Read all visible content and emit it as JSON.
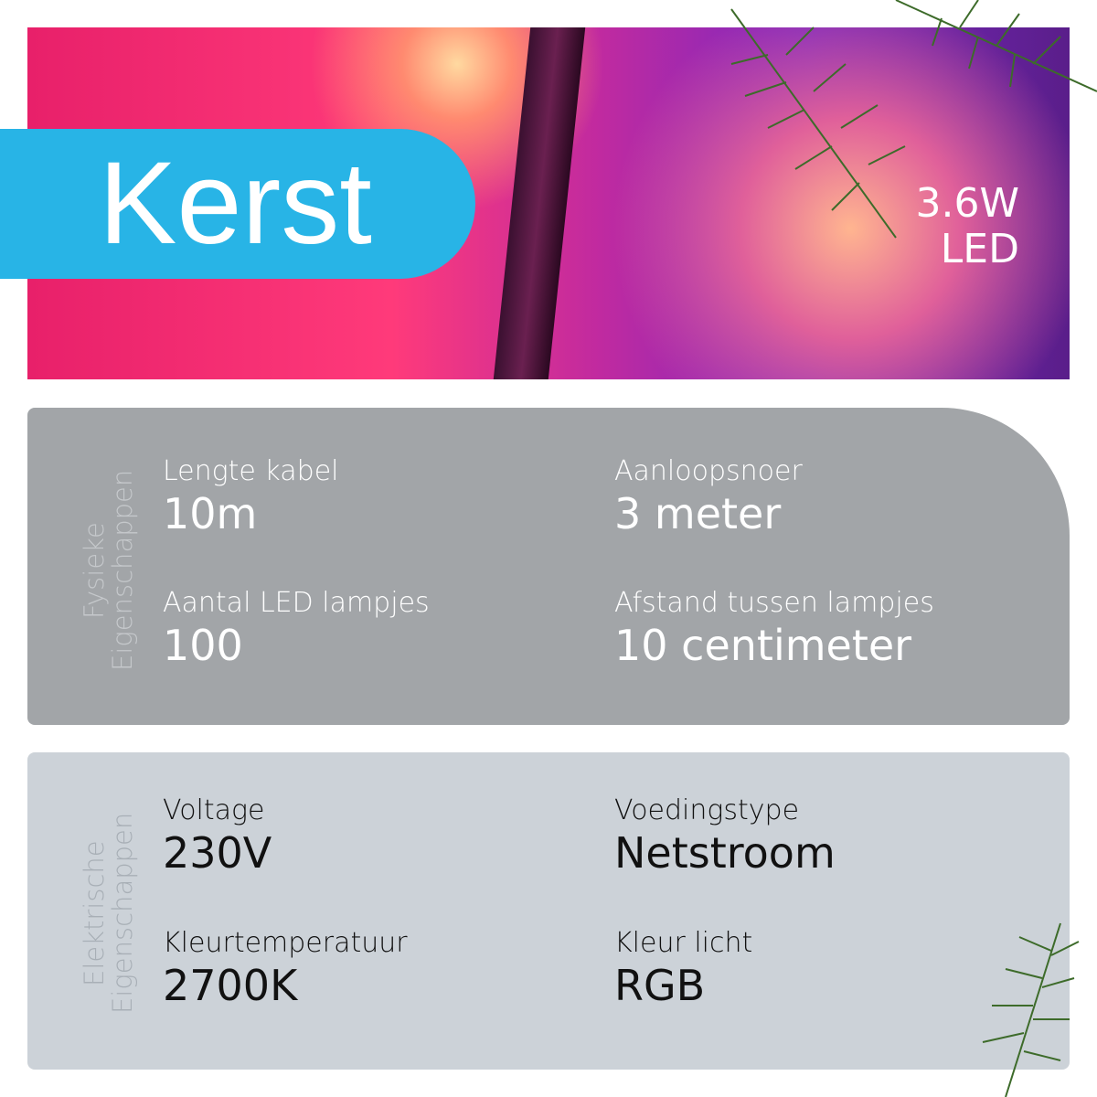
{
  "hero": {
    "title": "Kerst",
    "power_line1": "3.6W",
    "power_line2": "LED"
  },
  "physical": {
    "heading": "Fysieke Eigenschappen",
    "items": [
      {
        "label": "Lengte kabel",
        "value": "10m"
      },
      {
        "label": "Aanloopsnoer",
        "value": "3 meter"
      },
      {
        "label": "Aantal LED lampjes",
        "value": "100"
      },
      {
        "label": "Afstand tussen lampjes",
        "value": "10 centimeter"
      }
    ]
  },
  "electrical": {
    "heading": "Elektrische Eigenschappen",
    "items": [
      {
        "label": "Voltage",
        "value": "230V"
      },
      {
        "label": "Voedingstype",
        "value": "Netstroom"
      },
      {
        "label": "Kleurtemperatuur",
        "value": "2700K"
      },
      {
        "label": "Kleur licht",
        "value": "RGB"
      }
    ]
  }
}
